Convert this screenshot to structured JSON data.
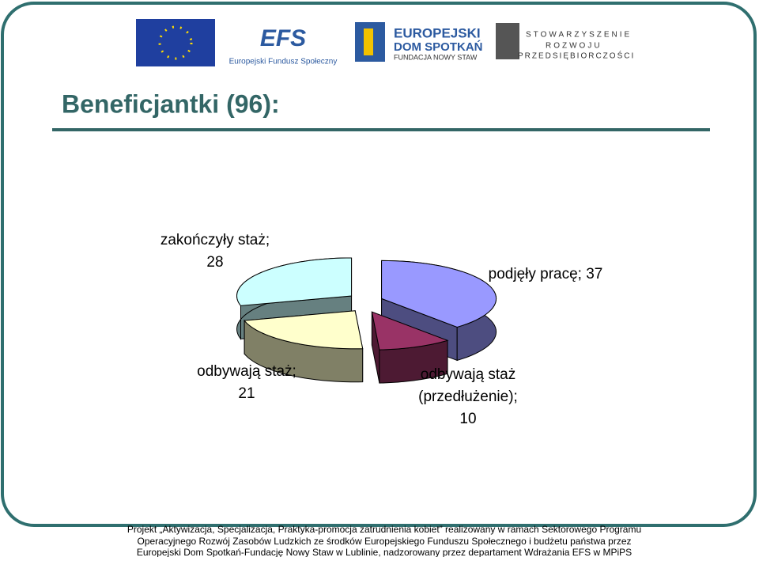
{
  "header": {
    "logos": [
      "EFS",
      "Europejski Fundusz Społeczny",
      "EUROPEJSKI",
      "DOM SPOTKAŃ",
      "FUNDACJA NOWY STAW",
      "STOWARZYSZENIE",
      "ROZWOJU",
      "PRZEDSIĘBIORCZOŚCI"
    ]
  },
  "title": "Beneficjantki (96):",
  "chart_data": {
    "type": "pie3d",
    "values": [
      37,
      10,
      21,
      28
    ],
    "value_labels": [
      "podjęły pracę; 37",
      "odbywają staż\n(przedłużenie);\n10",
      "odbywają staż;\n21",
      "zakończyły staż;\n28"
    ],
    "colors": [
      "#9999ff",
      "#993366",
      "#ffffcc",
      "#ccffff"
    ]
  },
  "footer": [
    "Projekt „Aktywizacja, Specjalizacja, Praktyka-promocja zatrudnienia kobiet” realizowany w ramach Sektorowego Programu",
    "Operacyjnego Rozwój Zasobów Ludzkich ze środków Europejskiego Funduszu Społecznego i budżetu państwa przez",
    "Europejski Dom Spotkań-Fundację Nowy Staw w Lublinie, nadzorowany przez departament Wdrażania EFS w MPiPS"
  ]
}
